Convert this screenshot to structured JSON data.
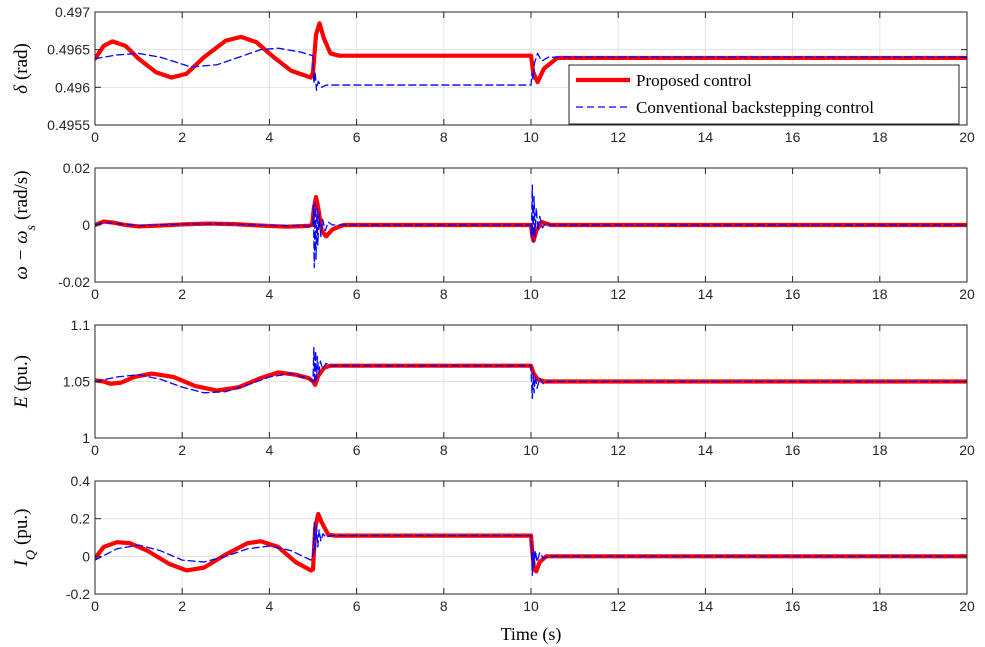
{
  "chart_data": [
    {
      "type": "line",
      "ylabel": {
        "symbol": "δ",
        "unit": "(rad)"
      },
      "xlim": [
        0,
        20
      ],
      "ylim": [
        0.4955,
        0.497
      ],
      "xticks": [
        "0",
        "2",
        "4",
        "6",
        "8",
        "10",
        "12",
        "14",
        "16",
        "18",
        "20"
      ],
      "yticks": [
        "0.4955",
        "0.496",
        "0.4965",
        "0.497"
      ],
      "ytick_values": [
        0.4955,
        0.496,
        0.4965,
        0.497
      ],
      "grid": true,
      "legend": {
        "placement": "right",
        "entries": [
          "Proposed control",
          "Conventional backstepping control"
        ]
      },
      "series": [
        {
          "name": "Proposed control",
          "color": "#ff0000",
          "style": "solid",
          "points": [
            [
              0,
              0.49638
            ],
            [
              0.2,
              0.49655
            ],
            [
              0.4,
              0.49661
            ],
            [
              0.7,
              0.49655
            ],
            [
              1.0,
              0.49638
            ],
            [
              1.4,
              0.4962
            ],
            [
              1.75,
              0.49613
            ],
            [
              2.1,
              0.49618
            ],
            [
              2.5,
              0.4964
            ],
            [
              3.0,
              0.49662
            ],
            [
              3.35,
              0.49667
            ],
            [
              3.7,
              0.4966
            ],
            [
              4.1,
              0.4964
            ],
            [
              4.5,
              0.49622
            ],
            [
              4.95,
              0.49613
            ],
            [
              5.0,
              0.4962
            ],
            [
              5.07,
              0.4967
            ],
            [
              5.15,
              0.49685
            ],
            [
              5.25,
              0.49665
            ],
            [
              5.4,
              0.49645
            ],
            [
              5.6,
              0.49642
            ],
            [
              10.0,
              0.49642
            ],
            [
              10.05,
              0.4962
            ],
            [
              10.15,
              0.49607
            ],
            [
              10.3,
              0.49625
            ],
            [
              10.6,
              0.49639
            ],
            [
              20,
              0.49639
            ]
          ]
        },
        {
          "name": "Conventional backstepping control",
          "color": "#0000ff",
          "style": "dashed",
          "points": [
            [
              0,
              0.49638
            ],
            [
              0.5,
              0.49643
            ],
            [
              1.0,
              0.49645
            ],
            [
              1.5,
              0.4964
            ],
            [
              2.2,
              0.49627
            ],
            [
              2.8,
              0.4963
            ],
            [
              3.3,
              0.4964
            ],
            [
              3.8,
              0.4965
            ],
            [
              4.2,
              0.49652
            ],
            [
              4.7,
              0.49647
            ],
            [
              5.0,
              0.49642
            ],
            [
              5.02,
              0.49605
            ],
            [
              5.05,
              0.4962
            ],
            [
              5.08,
              0.49596
            ],
            [
              5.12,
              0.49608
            ],
            [
              5.2,
              0.496
            ],
            [
              5.3,
              0.49603
            ],
            [
              10.0,
              0.49603
            ],
            [
              10.02,
              0.49618
            ],
            [
              10.05,
              0.4961
            ],
            [
              10.08,
              0.49632
            ],
            [
              10.15,
              0.49645
            ],
            [
              10.25,
              0.49635
            ],
            [
              10.4,
              0.4964
            ],
            [
              20,
              0.4964
            ]
          ]
        }
      ]
    },
    {
      "type": "line",
      "ylabel": {
        "symbol": "ω − ω",
        "sub": "s",
        "unit": "(rad/s)"
      },
      "xlim": [
        0,
        20
      ],
      "ylim": [
        -0.02,
        0.02
      ],
      "xticks": [
        "0",
        "2",
        "4",
        "6",
        "8",
        "10",
        "12",
        "14",
        "16",
        "18",
        "20"
      ],
      "yticks": [
        "-0.02",
        "0",
        "0.02"
      ],
      "ytick_values": [
        -0.02,
        0,
        0.02
      ],
      "grid": true,
      "series": [
        {
          "name": "Proposed control",
          "color": "#ff0000",
          "style": "solid",
          "points": [
            [
              0,
              0
            ],
            [
              0.2,
              0.0012
            ],
            [
              0.4,
              0.0009
            ],
            [
              0.7,
              0
            ],
            [
              1.0,
              -0.0005
            ],
            [
              1.5,
              -0.0002
            ],
            [
              2.0,
              0.0002
            ],
            [
              2.6,
              0.0005
            ],
            [
              3.2,
              0.0003
            ],
            [
              3.8,
              -0.0002
            ],
            [
              4.4,
              -0.0006
            ],
            [
              4.9,
              -0.0003
            ],
            [
              4.98,
              0
            ],
            [
              5.02,
              0.006
            ],
            [
              5.07,
              0.0098
            ],
            [
              5.12,
              0.006
            ],
            [
              5.2,
              -0.002
            ],
            [
              5.3,
              -0.004
            ],
            [
              5.45,
              -0.0015
            ],
            [
              5.7,
              0
            ],
            [
              10.0,
              0
            ],
            [
              10.03,
              -0.004
            ],
            [
              10.06,
              -0.0055
            ],
            [
              10.12,
              -0.002
            ],
            [
              10.25,
              0.001
            ],
            [
              10.45,
              0
            ],
            [
              20,
              0
            ]
          ]
        },
        {
          "name": "Conventional backstepping control",
          "color": "#0000ff",
          "style": "dashed",
          "points": [
            [
              0,
              0
            ],
            [
              0.2,
              0.001
            ],
            [
              0.5,
              0.0005
            ],
            [
              1.0,
              -0.0003
            ],
            [
              2.0,
              0.0003
            ],
            [
              3.0,
              0.0004
            ],
            [
              4.0,
              -0.0002
            ],
            [
              4.9,
              -0.0003
            ],
            [
              5.0,
              0
            ],
            [
              5.01,
              0.007
            ],
            [
              5.03,
              -0.015
            ],
            [
              5.05,
              0.008
            ],
            [
              5.07,
              -0.012
            ],
            [
              5.09,
              0.006
            ],
            [
              5.11,
              -0.007
            ],
            [
              5.14,
              0.004
            ],
            [
              5.18,
              -0.004
            ],
            [
              5.22,
              0.002
            ],
            [
              5.28,
              -0.002
            ],
            [
              5.35,
              0.001
            ],
            [
              5.45,
              0
            ],
            [
              10.0,
              0
            ],
            [
              10.01,
              -0.004
            ],
            [
              10.03,
              0.014
            ],
            [
              10.05,
              -0.006
            ],
            [
              10.07,
              0.01
            ],
            [
              10.09,
              -0.004
            ],
            [
              10.12,
              0.006
            ],
            [
              10.16,
              -0.002
            ],
            [
              10.2,
              0.003
            ],
            [
              10.26,
              -0.001
            ],
            [
              10.35,
              0.0008
            ],
            [
              10.45,
              0
            ],
            [
              20,
              0
            ]
          ]
        }
      ]
    },
    {
      "type": "line",
      "ylabel": {
        "symbol": "E",
        "unit": "(pu.)"
      },
      "xlim": [
        0,
        20
      ],
      "ylim": [
        1.0,
        1.1
      ],
      "xticks": [
        "0",
        "2",
        "4",
        "6",
        "8",
        "10",
        "12",
        "14",
        "16",
        "18",
        "20"
      ],
      "yticks": [
        "1",
        "1.05",
        "1.1"
      ],
      "ytick_values": [
        1.0,
        1.05,
        1.1
      ],
      "grid": true,
      "series": [
        {
          "name": "Proposed control",
          "color": "#ff0000",
          "style": "solid",
          "points": [
            [
              0,
              1.051
            ],
            [
              0.2,
              1.05
            ],
            [
              0.35,
              1.048
            ],
            [
              0.6,
              1.049
            ],
            [
              0.9,
              1.054
            ],
            [
              1.3,
              1.057
            ],
            [
              1.8,
              1.054
            ],
            [
              2.3,
              1.046
            ],
            [
              2.8,
              1.042
            ],
            [
              3.3,
              1.045
            ],
            [
              3.8,
              1.053
            ],
            [
              4.2,
              1.058
            ],
            [
              4.6,
              1.056
            ],
            [
              4.9,
              1.053
            ],
            [
              5.0,
              1.05
            ],
            [
              5.05,
              1.047
            ],
            [
              5.12,
              1.055
            ],
            [
              5.25,
              1.062
            ],
            [
              5.4,
              1.064
            ],
            [
              10.0,
              1.064
            ],
            [
              10.05,
              1.058
            ],
            [
              10.15,
              1.052
            ],
            [
              10.3,
              1.05
            ],
            [
              20,
              1.05
            ]
          ]
        },
        {
          "name": "Conventional backstepping control",
          "color": "#0000ff",
          "style": "dashed",
          "points": [
            [
              0,
              1.05
            ],
            [
              0.5,
              1.054
            ],
            [
              1.0,
              1.056
            ],
            [
              1.5,
              1.052
            ],
            [
              2.0,
              1.045
            ],
            [
              2.5,
              1.04
            ],
            [
              3.0,
              1.041
            ],
            [
              3.5,
              1.047
            ],
            [
              4.0,
              1.054
            ],
            [
              4.5,
              1.057
            ],
            [
              4.95,
              1.052
            ],
            [
              5.0,
              1.05
            ],
            [
              5.02,
              1.08
            ],
            [
              5.04,
              1.048
            ],
            [
              5.06,
              1.077
            ],
            [
              5.08,
              1.052
            ],
            [
              5.1,
              1.072
            ],
            [
              5.13,
              1.057
            ],
            [
              5.17,
              1.068
            ],
            [
              5.22,
              1.061
            ],
            [
              5.3,
              1.066
            ],
            [
              5.4,
              1.064
            ],
            [
              10.0,
              1.064
            ],
            [
              10.01,
              1.052
            ],
            [
              10.03,
              1.035
            ],
            [
              10.05,
              1.058
            ],
            [
              10.07,
              1.04
            ],
            [
              10.1,
              1.055
            ],
            [
              10.14,
              1.044
            ],
            [
              10.2,
              1.053
            ],
            [
              10.28,
              1.048
            ],
            [
              10.4,
              1.05
            ],
            [
              20,
              1.05
            ]
          ]
        }
      ]
    },
    {
      "type": "line",
      "ylabel": {
        "symbol": "I",
        "sub": "Q",
        "unit": "(pu.)"
      },
      "xlim": [
        0,
        20
      ],
      "ylim": [
        -0.2,
        0.4
      ],
      "xticks": [
        "0",
        "2",
        "4",
        "6",
        "8",
        "10",
        "12",
        "14",
        "16",
        "18",
        "20"
      ],
      "yticks": [
        "-0.2",
        "0",
        "0.2",
        "0.4"
      ],
      "ytick_values": [
        -0.2,
        0,
        0.2,
        0.4
      ],
      "grid": true,
      "xlabel": "Time (s)",
      "series": [
        {
          "name": "Proposed control",
          "color": "#ff0000",
          "style": "solid",
          "points": [
            [
              0,
              -0.01
            ],
            [
              0.2,
              0.05
            ],
            [
              0.5,
              0.075
            ],
            [
              0.8,
              0.07
            ],
            [
              1.2,
              0.03
            ],
            [
              1.7,
              -0.04
            ],
            [
              2.1,
              -0.075
            ],
            [
              2.5,
              -0.06
            ],
            [
              3.0,
              0.01
            ],
            [
              3.5,
              0.07
            ],
            [
              3.8,
              0.08
            ],
            [
              4.2,
              0.05
            ],
            [
              4.6,
              -0.03
            ],
            [
              4.95,
              -0.075
            ],
            [
              5.0,
              -0.07
            ],
            [
              5.05,
              0.15
            ],
            [
              5.12,
              0.225
            ],
            [
              5.2,
              0.18
            ],
            [
              5.35,
              0.115
            ],
            [
              5.5,
              0.11
            ],
            [
              10.0,
              0.11
            ],
            [
              10.02,
              0.05
            ],
            [
              10.07,
              -0.07
            ],
            [
              10.12,
              -0.08
            ],
            [
              10.2,
              -0.03
            ],
            [
              10.35,
              0
            ],
            [
              20,
              0
            ]
          ]
        },
        {
          "name": "Conventional backstepping control",
          "color": "#0000ff",
          "style": "dashed",
          "points": [
            [
              0,
              -0.02
            ],
            [
              0.5,
              0.04
            ],
            [
              1.0,
              0.06
            ],
            [
              1.5,
              0.03
            ],
            [
              2.0,
              -0.02
            ],
            [
              2.5,
              -0.03
            ],
            [
              3.0,
              0
            ],
            [
              3.5,
              0.04
            ],
            [
              4.0,
              0.055
            ],
            [
              4.5,
              0.03
            ],
            [
              4.95,
              -0.02
            ],
            [
              5.0,
              0.01
            ],
            [
              5.03,
              0.18
            ],
            [
              5.05,
              0.02
            ],
            [
              5.08,
              0.16
            ],
            [
              5.11,
              0.05
            ],
            [
              5.14,
              0.14
            ],
            [
              5.18,
              0.08
            ],
            [
              5.23,
              0.12
            ],
            [
              5.3,
              0.1
            ],
            [
              5.4,
              0.11
            ],
            [
              10.0,
              0.11
            ],
            [
              10.01,
              0.06
            ],
            [
              10.03,
              -0.1
            ],
            [
              10.05,
              0.04
            ],
            [
              10.07,
              -0.06
            ],
            [
              10.1,
              0.03
            ],
            [
              10.14,
              -0.03
            ],
            [
              10.2,
              0.02
            ],
            [
              10.28,
              -0.01
            ],
            [
              10.4,
              0
            ],
            [
              20,
              0
            ]
          ]
        }
      ]
    }
  ]
}
